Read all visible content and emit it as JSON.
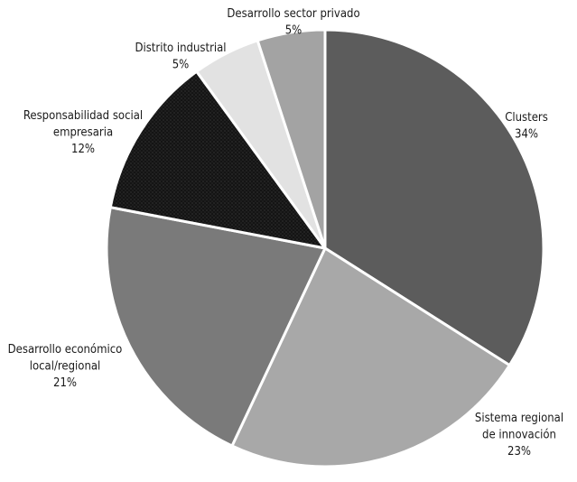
{
  "chart_data": {
    "type": "pie",
    "title": "",
    "start_angle_deg": 0,
    "direction": "clockwise",
    "slices": [
      {
        "label_lines": [
          "Clusters"
        ],
        "pct_label": "34%",
        "value": 34,
        "color": "#5c5c5c",
        "texture": "none"
      },
      {
        "label_lines": [
          "Sistema regional",
          "de innovación"
        ],
        "pct_label": "23%",
        "value": 23,
        "color": "#a8a8a8",
        "texture": "none"
      },
      {
        "label_lines": [
          "Desarrollo económico",
          "local/regional"
        ],
        "pct_label": "21%",
        "value": 21,
        "color": "#7a7a7a",
        "texture": "none"
      },
      {
        "label_lines": [
          "Responsabilidad social",
          "empresaria"
        ],
        "pct_label": "12%",
        "value": 12,
        "color": "#141414",
        "texture": "dots"
      },
      {
        "label_lines": [
          "Distrito industrial"
        ],
        "pct_label": "5%",
        "value": 5,
        "color": "#e2e2e2",
        "texture": "none"
      },
      {
        "label_lines": [
          "Desarrollo sector privado"
        ],
        "pct_label": "5%",
        "value": 5,
        "color": "#a3a3a3",
        "texture": "none"
      }
    ]
  }
}
